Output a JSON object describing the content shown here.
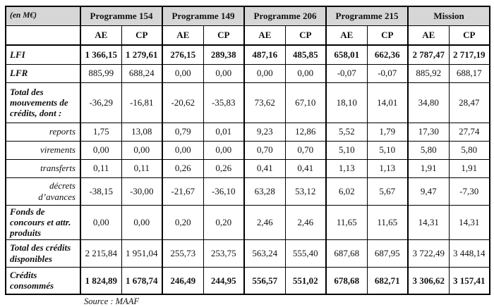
{
  "table": {
    "unit_label": "(en M€)",
    "ae_label": "AE",
    "cp_label": "CP",
    "col_groups": [
      {
        "label": "Programme 154"
      },
      {
        "label": "Programme 149"
      },
      {
        "label": "Programme 206"
      },
      {
        "label": "Programme 215"
      },
      {
        "label": "Mission"
      }
    ],
    "rows": [
      {
        "label": "LFI",
        "style": "main",
        "bold_values": true,
        "values": [
          "1 366,15",
          "1 279,61",
          "276,15",
          "289,38",
          "487,16",
          "485,85",
          "658,01",
          "662,36",
          "2 787,47",
          "2 717,19"
        ]
      },
      {
        "label": "LFR",
        "style": "main",
        "bold_values": false,
        "values": [
          "885,99",
          "688,24",
          "0,00",
          "0,00",
          "0,00",
          "0,00",
          "-0,07",
          "-0,07",
          "885,92",
          "688,17"
        ]
      },
      {
        "label": "Total des mouvements de crédits, dont :",
        "style": "main",
        "bold_values": false,
        "values": [
          "-36,29",
          "-16,81",
          "-20,62",
          "-35,83",
          "73,62",
          "67,10",
          "18,10",
          "14,01",
          "34,80",
          "28,47"
        ]
      },
      {
        "label": "reports",
        "style": "sub",
        "bold_values": false,
        "values": [
          "1,75",
          "13,08",
          "0,79",
          "0,01",
          "9,23",
          "12,86",
          "5,52",
          "1,79",
          "17,30",
          "27,74"
        ]
      },
      {
        "label": "virements",
        "style": "sub",
        "bold_values": false,
        "values": [
          "0,00",
          "0,00",
          "0,00",
          "0,00",
          "0,70",
          "0,70",
          "5,10",
          "5,10",
          "5,80",
          "5,80"
        ]
      },
      {
        "label": "transferts",
        "style": "sub",
        "bold_values": false,
        "values": [
          "0,11",
          "0,11",
          "0,26",
          "0,26",
          "0,41",
          "0,41",
          "1,13",
          "1,13",
          "1,91",
          "1,91"
        ]
      },
      {
        "label": "décrets d’avances",
        "style": "sub",
        "bold_values": false,
        "values": [
          "-38,15",
          "-30,00",
          "-21,67",
          "-36,10",
          "63,28",
          "53,12",
          "6,02",
          "5,67",
          "9,47",
          "-7,30"
        ]
      },
      {
        "label": "Fonds de concours et attr. produits",
        "style": "main",
        "bold_values": false,
        "values": [
          "0,00",
          "0,00",
          "0,20",
          "0,20",
          "2,46",
          "2,46",
          "11,65",
          "11,65",
          "14,31",
          "14,31"
        ]
      },
      {
        "label": "Total des crédits disponibles",
        "style": "main",
        "bold_values": false,
        "values": [
          "2 215,84",
          "1 951,04",
          "255,73",
          "253,75",
          "563,24",
          "555,40",
          "687,68",
          "687,95",
          "3 722,49",
          "3 448,14"
        ]
      },
      {
        "label": "Crédits consommés",
        "style": "main",
        "bold_values": true,
        "values": [
          "1 824,89",
          "1 678,74",
          "246,49",
          "244,95",
          "556,57",
          "551,02",
          "678,68",
          "682,71",
          "3 306,62",
          "3 157,41"
        ]
      }
    ],
    "source": "Source : MAAF"
  }
}
